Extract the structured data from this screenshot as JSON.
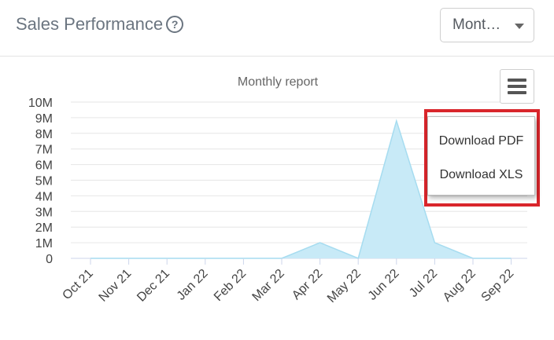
{
  "header": {
    "title": "Sales Performance",
    "help_icon": "question-circle-icon",
    "period_select": {
      "selected": "Mont…"
    }
  },
  "chart_menu": {
    "button_icon": "hamburger-menu-icon",
    "items": [
      {
        "label": "Download PDF"
      },
      {
        "label": "Download XLS"
      }
    ],
    "highlight_color": "#d9252b"
  },
  "chart_data": {
    "type": "area",
    "title": "Monthly report",
    "categories": [
      "Oct 21",
      "Nov 21",
      "Dec 21",
      "Jan 22",
      "Feb 22",
      "Mar 22",
      "Apr 22",
      "May 22",
      "Jun 22",
      "Jul 22",
      "Aug 22",
      "Sep 22"
    ],
    "series": [
      {
        "values": [
          0,
          0,
          0,
          0,
          0,
          0,
          1000000,
          0,
          8800000,
          1000000,
          0,
          0
        ]
      }
    ],
    "y_ticks": [
      "0",
      "1M",
      "2M",
      "3M",
      "4M",
      "5M",
      "6M",
      "7M",
      "8M",
      "9M",
      "10M"
    ],
    "ylim": [
      0,
      10000000
    ],
    "grid": true,
    "fill_color": "#c8eaf7",
    "line_color": "#a6dcf0"
  }
}
